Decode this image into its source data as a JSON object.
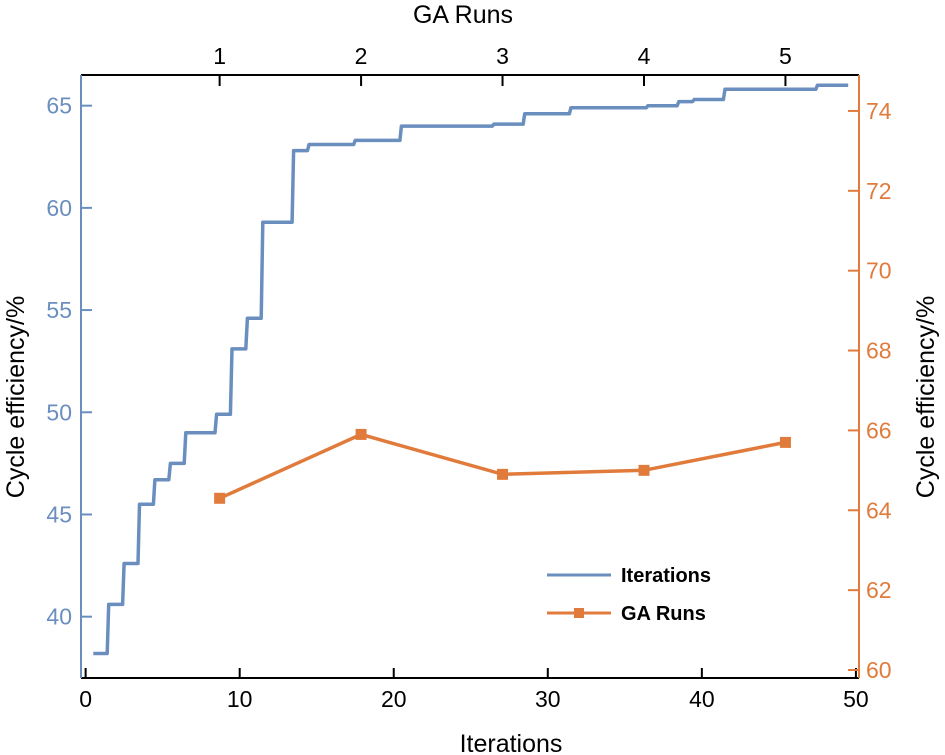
{
  "chart_data": {
    "type": "line",
    "x_bottom": {
      "label": "Iterations",
      "ticks": [
        0,
        10,
        20,
        30,
        40,
        50
      ],
      "range": [
        -0.3,
        50.2
      ]
    },
    "x_top": {
      "label": "GA Runs",
      "ticks": [
        1,
        2,
        3,
        4,
        5
      ],
      "range": [
        0.02,
        5.52
      ]
    },
    "y_left": {
      "label": "Cycle efficiency/%",
      "ticks": [
        40,
        45,
        50,
        55,
        60,
        65
      ],
      "range": [
        37,
        66.5
      ]
    },
    "y_right": {
      "label": "Cycle efficiency/%",
      "ticks": [
        60,
        62,
        64,
        66,
        68,
        70,
        72,
        74
      ],
      "range": [
        59.8,
        74.9
      ]
    },
    "series": [
      {
        "name": "Iterations",
        "axis": "bottom-left",
        "color": "#6a8fbf",
        "step": true,
        "x": [
          0.5,
          1.5,
          2.5,
          3.5,
          4.5,
          5.5,
          6.5,
          7.5,
          8.5,
          9.5,
          10.5,
          11.5,
          12.5,
          13.5,
          14.5,
          15.5,
          16.5,
          17.5,
          18.5,
          19.5,
          20.5,
          21.5,
          22.5,
          23.5,
          24.5,
          25.5,
          26.5,
          27.5,
          28.5,
          29.5,
          30.5,
          31.5,
          32.5,
          33.5,
          34.5,
          35.5,
          36.5,
          37.5,
          38.5,
          39.5,
          40.5,
          41.5,
          42.5,
          43.5,
          44.5,
          45.5,
          46.5,
          47.5,
          48.5,
          49.5
        ],
        "y": [
          38.2,
          40.6,
          42.6,
          45.5,
          46.7,
          47.5,
          49.0,
          49.0,
          49.9,
          53.1,
          54.6,
          59.3,
          59.3,
          62.8,
          63.1,
          63.1,
          63.1,
          63.3,
          63.3,
          63.3,
          64.0,
          64.0,
          64.0,
          64.0,
          64.0,
          64.0,
          64.1,
          64.1,
          64.6,
          64.6,
          64.6,
          64.9,
          64.9,
          64.9,
          64.9,
          64.9,
          65.0,
          65.0,
          65.2,
          65.3,
          65.3,
          65.8,
          65.8,
          65.8,
          65.8,
          65.8,
          65.8,
          66.0,
          66.0,
          66.0
        ]
      },
      {
        "name": "GA Runs",
        "axis": "top-right",
        "color": "#e07b3c",
        "marker": "square",
        "x": [
          1,
          2,
          3,
          4,
          5
        ],
        "y": [
          64.3,
          65.9,
          64.9,
          65.0,
          65.7
        ]
      }
    ],
    "legend": {
      "position": "bottom-right",
      "entries": [
        "Iterations",
        "GA Runs"
      ]
    },
    "colors": {
      "left_axis": "#6a8fbf",
      "right_axis": "#e07b3c",
      "frame": "#000000"
    },
    "grid": false
  }
}
